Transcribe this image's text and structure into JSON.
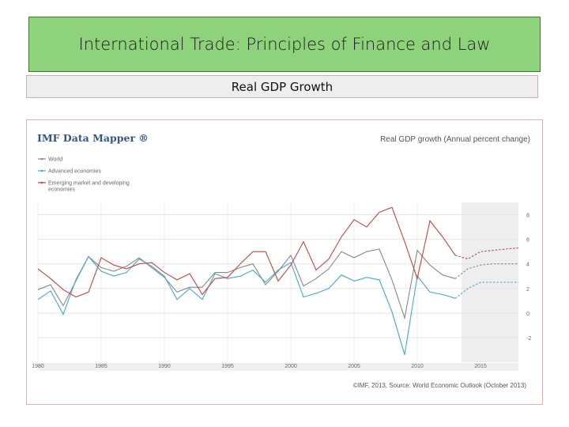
{
  "slide": {
    "title": "International Trade: Principles of  Finance  and Law",
    "subtitle": "Real GDP Growth"
  },
  "chart_header": {
    "brand": "IMF Data Mapper ®",
    "chart_title": "Real GDP growth (Annual percent change)",
    "source": "©IMF, 2013, Source: World Economic Outlook (October 2013)"
  },
  "colors": {
    "world": "#888888",
    "advanced": "#45a8c8",
    "emerging": "#c24545",
    "projection_shade": "#eeeeee",
    "brand": "#33557f"
  },
  "chart_data": {
    "type": "line",
    "title": "Real GDP growth (Annual percent change)",
    "xlim": [
      1980,
      2018
    ],
    "ylim": [
      -4,
      9
    ],
    "x_ticks": [
      1980,
      1985,
      1990,
      1995,
      2000,
      2005,
      2010,
      2015
    ],
    "y_ticks": [
      8,
      6,
      4,
      2,
      0,
      -2
    ],
    "projection_from": 2013,
    "grid": true,
    "legend_position": "top-left",
    "x": [
      1980,
      1981,
      1982,
      1983,
      1984,
      1985,
      1986,
      1987,
      1988,
      1989,
      1990,
      1991,
      1992,
      1993,
      1994,
      1995,
      1996,
      1997,
      1998,
      1999,
      2000,
      2001,
      2002,
      2003,
      2004,
      2005,
      2006,
      2007,
      2008,
      2009,
      2010,
      2011,
      2012,
      2013,
      2014,
      2015,
      2016,
      2017,
      2018
    ],
    "series": [
      {
        "name": "World",
        "color": "#888888",
        "values": [
          1.9,
          2.3,
          0.6,
          2.6,
          4.6,
          3.7,
          3.4,
          3.8,
          4.5,
          3.7,
          2.9,
          1.7,
          2.1,
          2.1,
          3.3,
          3.3,
          3.7,
          4.0,
          2.3,
          3.4,
          4.7,
          2.2,
          2.8,
          3.6,
          5.0,
          4.5,
          5.0,
          5.2,
          2.7,
          -0.4,
          5.1,
          3.9,
          3.1,
          2.8,
          3.6,
          3.9,
          4.0,
          4.0,
          4.0
        ]
      },
      {
        "name": "Advanced economies",
        "color": "#45a8c8",
        "values": [
          1.1,
          1.8,
          -0.1,
          2.7,
          4.6,
          3.4,
          3.0,
          3.3,
          4.4,
          3.8,
          3.0,
          1.1,
          2.0,
          1.1,
          3.2,
          2.8,
          3.0,
          3.5,
          2.5,
          3.5,
          4.1,
          1.3,
          1.6,
          2.0,
          3.1,
          2.6,
          2.9,
          2.7,
          0.1,
          -3.4,
          3.0,
          1.7,
          1.5,
          1.2,
          2.0,
          2.5,
          2.5,
          2.5,
          2.5
        ]
      },
      {
        "name": "Emerging market and developing economies",
        "color": "#c24545",
        "values": [
          3.6,
          2.8,
          1.9,
          1.3,
          1.7,
          4.5,
          3.9,
          3.6,
          4.0,
          4.1,
          3.3,
          2.7,
          3.2,
          1.5,
          2.8,
          2.9,
          4.0,
          5.0,
          5.0,
          2.6,
          3.9,
          5.8,
          3.5,
          4.4,
          6.2,
          7.6,
          7.0,
          8.2,
          8.6,
          5.8,
          2.8,
          7.5,
          6.2,
          4.7,
          4.4,
          5.0,
          5.1,
          5.2,
          5.3
        ]
      }
    ]
  }
}
